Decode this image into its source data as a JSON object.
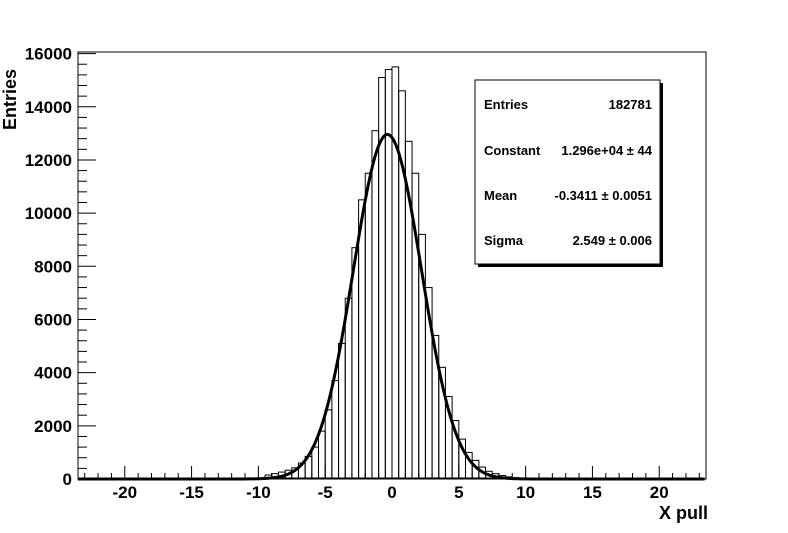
{
  "chart_data": {
    "type": "bar",
    "xlabel": "X pull",
    "ylabel": "Entries",
    "xlim": [
      -23.5,
      23.5
    ],
    "ylim": [
      0,
      16000
    ],
    "x_ticks": [
      -20,
      -15,
      -10,
      -5,
      0,
      5,
      10,
      15,
      20
    ],
    "y_ticks": [
      0,
      2000,
      4000,
      6000,
      8000,
      10000,
      12000,
      14000,
      16000
    ],
    "bin_width": 0.5,
    "histogram": {
      "name": "",
      "bin_low_edges": [
        -9.5,
        -9,
        -8.5,
        -8,
        -7.5,
        -7,
        -6.5,
        -6,
        -5.5,
        -5,
        -4.5,
        -4,
        -3.5,
        -3,
        -2.5,
        -2,
        -1.5,
        -1,
        -0.5,
        0,
        0.5,
        1,
        1.5,
        2,
        2.5,
        3,
        3.5,
        4,
        4.5,
        5,
        5.5,
        6,
        6.5,
        7,
        7.5,
        8,
        8.5,
        9,
        9.5,
        10
      ],
      "values": [
        150,
        200,
        260,
        330,
        420,
        600,
        850,
        1200,
        1800,
        2600,
        3700,
        5100,
        6800,
        8700,
        10500,
        11500,
        13100,
        15100,
        15400,
        15500,
        14600,
        12700,
        11500,
        9200,
        7200,
        5400,
        4200,
        3100,
        2200,
        1500,
        1000,
        700,
        450,
        290,
        200,
        130,
        80,
        50,
        30,
        20
      ]
    },
    "fit": {
      "function": "gaussian",
      "constant": 12960,
      "mean": -0.3411,
      "sigma": 2.549
    },
    "stats_box": {
      "rows": [
        {
          "label": "Entries",
          "value": "182781"
        },
        {
          "label": "Constant",
          "value": "1.296e+04 ± 44"
        },
        {
          "label": "Mean",
          "value": "-0.3411 ± 0.0051"
        },
        {
          "label": "Sigma",
          "value": "2.549 ± 0.006"
        }
      ]
    }
  }
}
